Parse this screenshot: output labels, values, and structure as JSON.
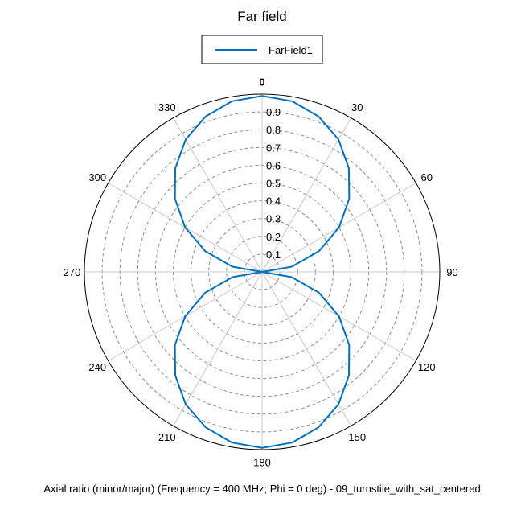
{
  "chart_data": {
    "type": "polar-line",
    "title": "Far field",
    "footer": "Axial ratio (minor/major) (Frequency = 400 MHz; Phi = 0 deg) - 09_turnstile_with_sat_centered",
    "legend": {
      "placement": "top-center",
      "entries": [
        "FarField1"
      ]
    },
    "angular_axis": {
      "zero_direction": "top",
      "direction": "clockwise",
      "unit": "deg",
      "ticks": [
        "0",
        "30",
        "60",
        "90",
        "120",
        "150",
        "180",
        "210",
        "240",
        "270",
        "300",
        "330"
      ]
    },
    "radial_axis": {
      "range": [
        0,
        1
      ],
      "ticks": [
        "0.1",
        "0.2",
        "0.3",
        "0.4",
        "0.5",
        "0.6",
        "0.7",
        "0.8",
        "0.9"
      ],
      "grid": "dashed"
    },
    "series": [
      {
        "name": "FarField1",
        "color": "#0072bd",
        "theta_deg": [
          0,
          10,
          20,
          30,
          40,
          50,
          60,
          70,
          80,
          90,
          100,
          110,
          120,
          130,
          140,
          150,
          160,
          170,
          180,
          190,
          200,
          210,
          220,
          230,
          240,
          250,
          260,
          270,
          280,
          290,
          300,
          310,
          320,
          330,
          340,
          350,
          360
        ],
        "r": [
          0.99,
          0.975,
          0.93,
          0.86,
          0.76,
          0.64,
          0.5,
          0.34,
          0.17,
          0.0,
          0.17,
          0.34,
          0.5,
          0.64,
          0.76,
          0.86,
          0.93,
          0.975,
          0.99,
          0.975,
          0.93,
          0.86,
          0.76,
          0.64,
          0.5,
          0.34,
          0.17,
          0.0,
          0.17,
          0.34,
          0.5,
          0.64,
          0.76,
          0.86,
          0.93,
          0.975,
          0.99
        ]
      }
    ]
  },
  "colors": {
    "series": "#0072bd",
    "grid": "#c8c8c8",
    "axis": "#000000"
  }
}
